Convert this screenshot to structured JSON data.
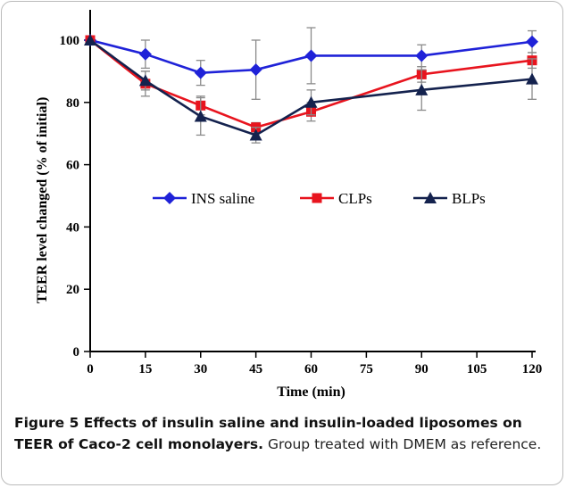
{
  "chart_data": {
    "type": "line",
    "xlabel": "Time (min)",
    "ylabel": "TEER level changed (% of initial)",
    "x_ticks": [
      0,
      15,
      30,
      45,
      60,
      75,
      90,
      105,
      120
    ],
    "y_ticks": [
      0,
      20,
      40,
      60,
      80,
      100
    ],
    "xlim": [
      0,
      120
    ],
    "ylim": [
      0,
      100
    ],
    "legend_position": "center",
    "series": [
      {
        "name": "INS saline",
        "color": "#1f22d8",
        "marker": "diamond",
        "x": [
          0,
          15,
          30,
          45,
          60,
          90,
          120
        ],
        "y": [
          100,
          95.5,
          89.5,
          90.5,
          95,
          95,
          99.5
        ],
        "err": [
          0,
          4.5,
          4,
          9.5,
          9,
          3.5,
          3.5
        ]
      },
      {
        "name": "CLPs",
        "color": "#e8141e",
        "marker": "square",
        "x": [
          0,
          15,
          30,
          45,
          60,
          90,
          120
        ],
        "y": [
          100,
          86,
          79,
          72,
          77,
          89,
          93.5
        ],
        "err": [
          0,
          4,
          3,
          1.5,
          3,
          2.5,
          2.5
        ]
      },
      {
        "name": "BLPs",
        "color": "#14224e",
        "marker": "triangle",
        "x": [
          0,
          15,
          30,
          45,
          60,
          90,
          120
        ],
        "y": [
          100,
          87,
          75.5,
          69.5,
          80,
          84,
          87.5
        ],
        "err": [
          0,
          3,
          6,
          2.5,
          4,
          6.5,
          6.5
        ]
      }
    ]
  },
  "caption": {
    "bold": "Figure 5 Effects of insulin saline and insulin-loaded liposomes on TEER of Caco-2 cell monolayers.",
    "rest": " Group treated with DMEM as reference."
  }
}
